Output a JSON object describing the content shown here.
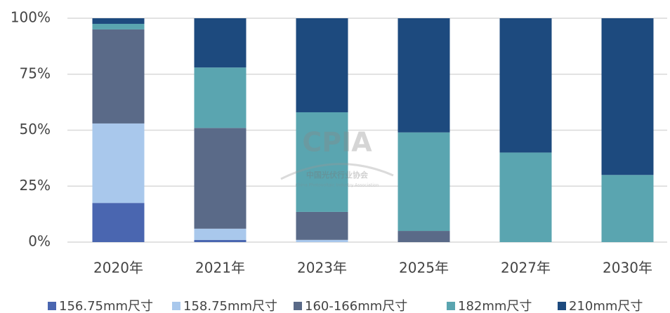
{
  "chart_data": {
    "type": "stacked_bar",
    "categories": [
      "2020年",
      "2021年",
      "2023年",
      "2025年",
      "2027年",
      "2030年"
    ],
    "series": [
      {
        "name": "156.75mm尺寸",
        "color": "#4a66b0",
        "values": [
          17.5,
          1,
          0,
          0,
          0,
          0
        ]
      },
      {
        "name": "158.75mm尺寸",
        "color": "#a9c8ec",
        "values": [
          35.5,
          5,
          1,
          0,
          0,
          0
        ]
      },
      {
        "name": "160-166mm尺寸",
        "color": "#5a6a88",
        "values": [
          42,
          45,
          12.5,
          5,
          0,
          0
        ]
      },
      {
        "name": "182mm尺寸",
        "color": "#5aa5b0",
        "values": [
          2.5,
          27,
          44.5,
          44,
          40,
          30
        ]
      },
      {
        "name": "210mm尺寸",
        "color": "#1d4a7e",
        "values": [
          2.5,
          22,
          42,
          51,
          60,
          70
        ]
      }
    ],
    "ylim": [
      0,
      100
    ],
    "yticks": [
      {
        "value": 0,
        "label": "0%"
      },
      {
        "value": 25,
        "label": "25%"
      },
      {
        "value": 50,
        "label": "50%"
      },
      {
        "value": 75,
        "label": "75%"
      },
      {
        "value": 100,
        "label": "100%"
      }
    ],
    "grid": true,
    "legend": "bottom",
    "watermark": {
      "logo": "CPIA",
      "name": "中国光伏行业协会",
      "english": "China Photovoltaic Industry Association"
    }
  }
}
